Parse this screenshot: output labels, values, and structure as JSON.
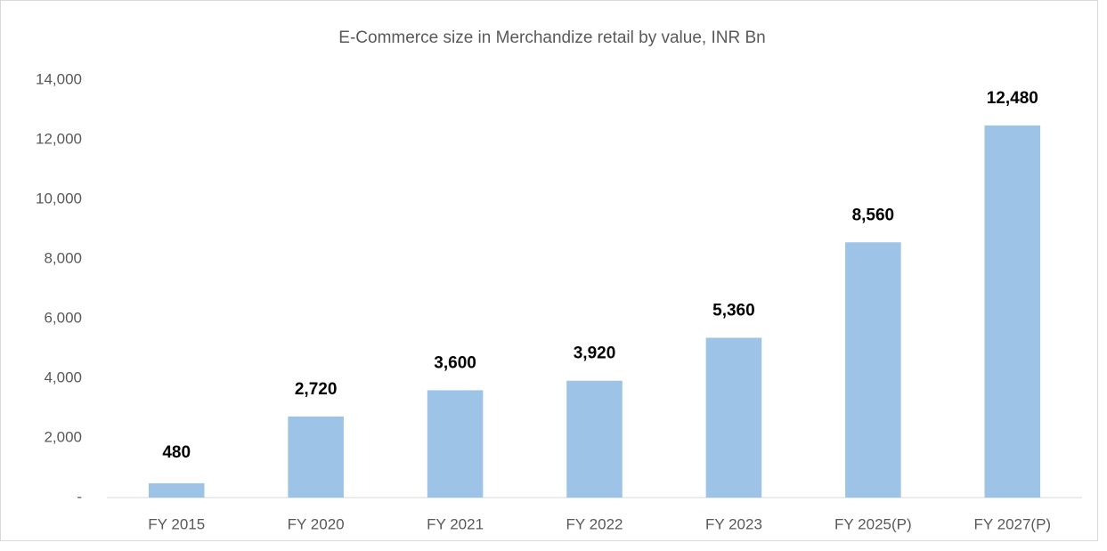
{
  "chart_data": {
    "type": "bar",
    "title": "E-Commerce size in Merchandize retail by value, INR Bn",
    "categories": [
      "FY 2015",
      "FY 2020",
      "FY 2021",
      "FY 2022",
      "FY 2023",
      "FY 2025(P)",
      "FY 2027(P)"
    ],
    "values": [
      480,
      2720,
      3600,
      3920,
      5360,
      8560,
      12480
    ],
    "value_labels": [
      "480",
      "2,720",
      "3,600",
      "3,920",
      "5,360",
      "8,560",
      "12,480"
    ],
    "color": "#9dc3e6",
    "ylim": [
      0,
      14000
    ],
    "yticks": [
      {
        "value": 0,
        "label": "-"
      },
      {
        "value": 2000,
        "label": "2,000"
      },
      {
        "value": 4000,
        "label": "4,000"
      },
      {
        "value": 6000,
        "label": "6,000"
      },
      {
        "value": 8000,
        "label": "8,000"
      },
      {
        "value": 10000,
        "label": "10,000"
      },
      {
        "value": 12000,
        "label": "12,000"
      },
      {
        "value": 14000,
        "label": "14,000"
      }
    ],
    "grid": false
  }
}
